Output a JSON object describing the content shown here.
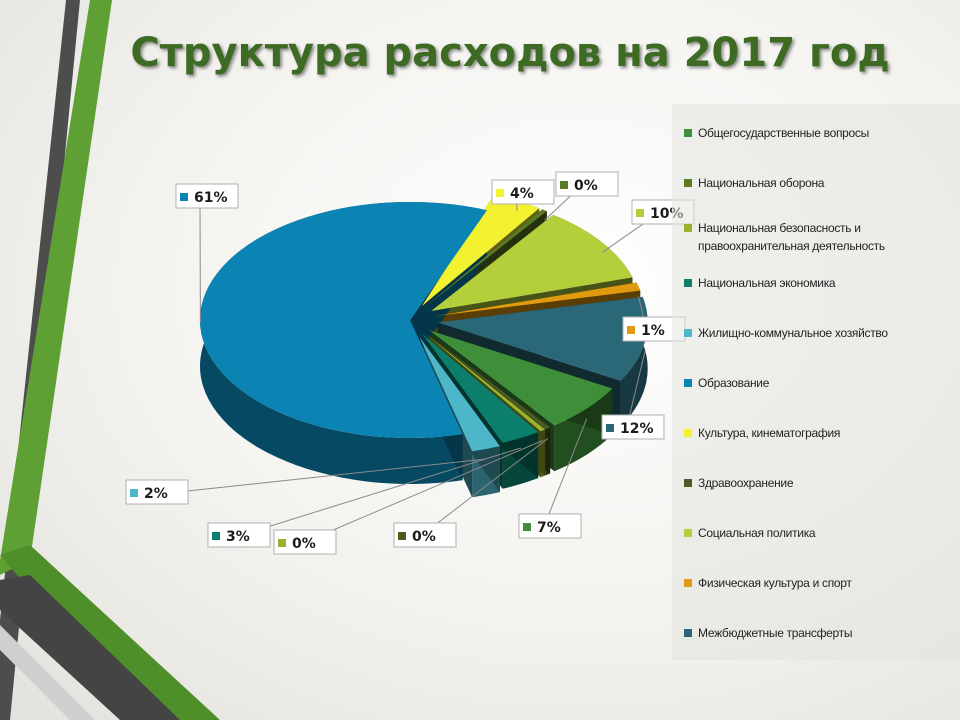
{
  "title": "Структура расходов на 2017 год",
  "colors": {
    "title": "#3d6b24",
    "deco_dark": "#4d4d4d",
    "deco_green": "#5fa035"
  },
  "legend": [
    {
      "label": "Общегосударственные вопросы",
      "color": "#3f8f3a"
    },
    {
      "label": "Национальная оборона",
      "color": "#5b7a24"
    },
    {
      "label": "Национальная безопасность и правоохранительная деятельность",
      "color": "#9ab32e"
    },
    {
      "label": "Национальная экономика",
      "color": "#0b7f6c"
    },
    {
      "label": "Жилищно-коммунальное хозяйство",
      "color": "#4eb6c9"
    },
    {
      "label": "Образование",
      "color": "#0b84b4"
    },
    {
      "label": "Культура, кинематография",
      "color": "#f2f231"
    },
    {
      "label": "Здравоохранение",
      "color": "#4a5c22"
    },
    {
      "label": "Социальная политика",
      "color": "#b4cf3c"
    },
    {
      "label": "Физическая культура и спорт",
      "color": "#e09a10"
    },
    {
      "label": "Межбюджетные трансферты",
      "color": "#2a6878"
    }
  ],
  "chart_data": {
    "type": "pie",
    "title": "Структура расходов на 2017 год",
    "legend_position": "right",
    "categories": [
      "Общегосударственные вопросы",
      "Национальная оборона",
      "Национальная безопасность и правоохранительная деятельность",
      "Национальная экономика",
      "Жилищно-коммунальное хозяйство",
      "Образование",
      "Культура, кинематография",
      "Здравоохранение",
      "Социальная политика",
      "Физическая культура и спорт",
      "Межбюджетные трансферты"
    ],
    "values": [
      7,
      0,
      0,
      3,
      2,
      61,
      4,
      0,
      10,
      1,
      12
    ],
    "labels": [
      "7%",
      "0%",
      "0%",
      "3%",
      "2%",
      "61%",
      "4%",
      "0%",
      "10%",
      "1%",
      "12%"
    ]
  }
}
